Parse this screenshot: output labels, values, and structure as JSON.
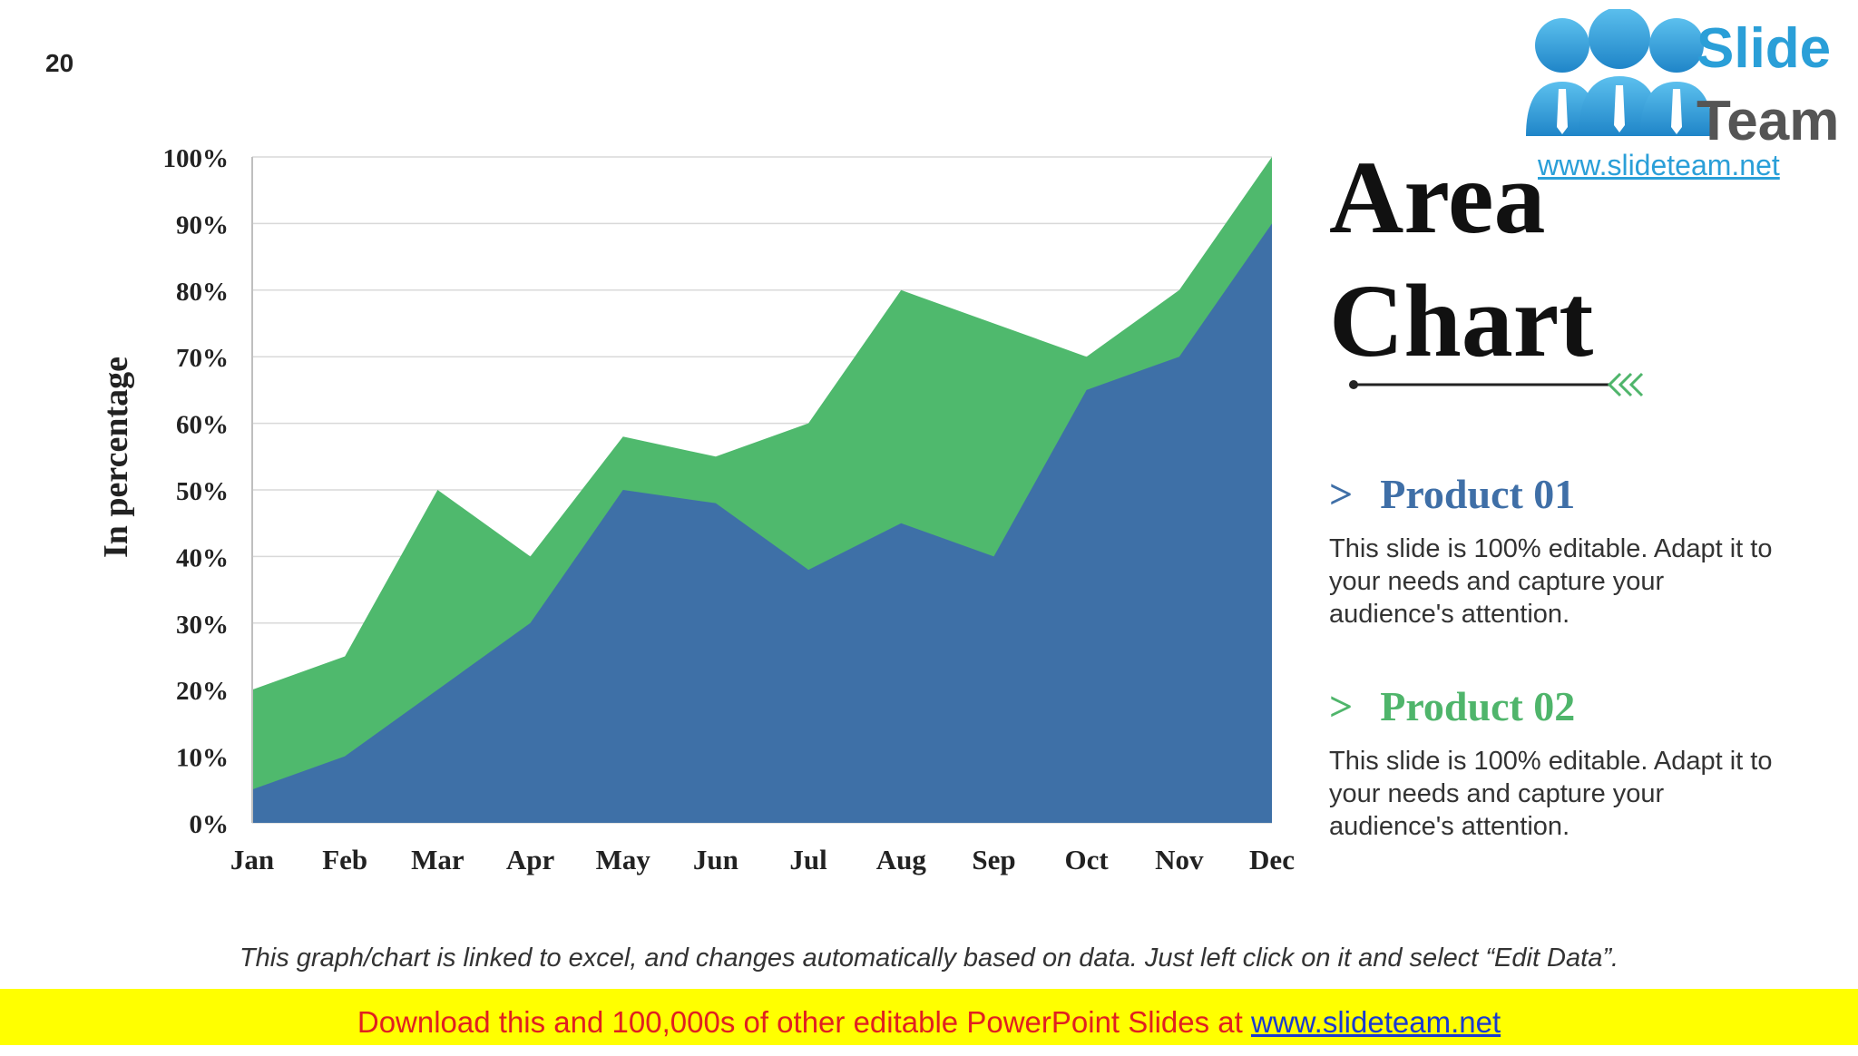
{
  "page": {
    "number": "20"
  },
  "logo": {
    "line1": "Slide",
    "line2": "Team",
    "url": "www.slideteam.net"
  },
  "title": {
    "line1": "Area",
    "line2": "Chart"
  },
  "products": [
    {
      "arrow": ">",
      "name": "Product 01",
      "description": "This slide is 100% editable. Adapt it to your needs and capture your audience's attention.",
      "color": "#3f6fa7"
    },
    {
      "arrow": ">",
      "name": "Product 02",
      "description": "This slide is 100% editable. Adapt it to your needs and capture your audience's attention.",
      "color": "#4fb56b"
    }
  ],
  "footnote": "This graph/chart is linked to excel, and changes automatically based on data. Just left click on it and select “Edit Data”.",
  "banner": {
    "text": "Download this and 100,000s of other editable PowerPoint Slides at ",
    "link": "www.slideteam.net"
  },
  "chart_data": {
    "type": "area",
    "stacked": false,
    "categories": [
      "Jan",
      "Feb",
      "Mar",
      "Apr",
      "May",
      "Jun",
      "Jul",
      "Aug",
      "Sep",
      "Oct",
      "Nov",
      "Dec"
    ],
    "series": [
      {
        "values": [
          20,
          25,
          50,
          40,
          58,
          55,
          60,
          80,
          75,
          70,
          80,
          100
        ],
        "color": "#4fb96d"
      },
      {
        "values": [
          5,
          10,
          20,
          30,
          50,
          48,
          38,
          45,
          40,
          65,
          70,
          90
        ],
        "color": "#3e70a7"
      }
    ],
    "ylabel": "In percentage",
    "ylim": [
      0,
      100
    ],
    "yticks": [
      "0%",
      "10%",
      "20%",
      "30%",
      "40%",
      "50%",
      "60%",
      "70%",
      "80%",
      "90%",
      "100%"
    ],
    "grid": true
  }
}
